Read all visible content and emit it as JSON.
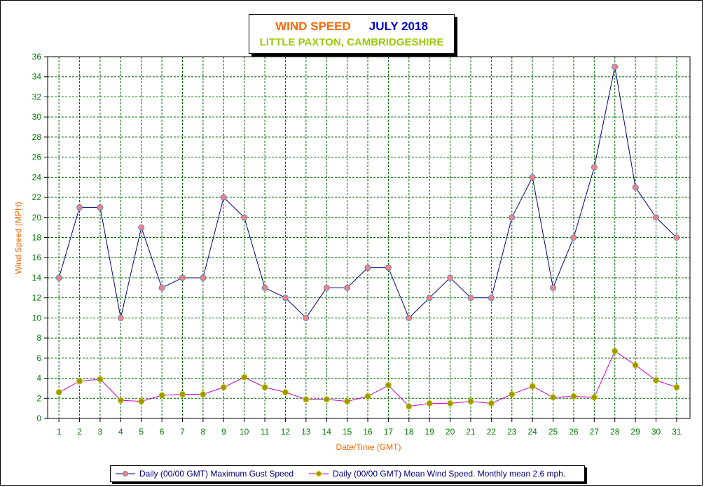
{
  "title": {
    "main": "WIND SPEED",
    "date": "JULY 2018",
    "location": "LITTLE PAXTON, CAMBRIDGESHIRE"
  },
  "colors": {
    "title_main": "#ff6600",
    "title_date": "#0000cc",
    "location": "#99cc00",
    "axis_label": "#ff6600",
    "tick_label": "#008000",
    "gust_line": "#000080",
    "gust_marker": "#ff8080",
    "mean_line": "#cc00cc",
    "mean_marker": "#999900",
    "grid": "#006600"
  },
  "chart_data": {
    "type": "line",
    "xlabel": "Date/Time (GMT)",
    "ylabel": "Wind Speed (MPH)",
    "ylim": [
      0,
      36
    ],
    "y_ticks": [
      0,
      2,
      4,
      6,
      8,
      10,
      12,
      14,
      16,
      18,
      20,
      22,
      24,
      26,
      28,
      30,
      32,
      34,
      36
    ],
    "grid": true,
    "legend_position": "bottom",
    "x": [
      1,
      2,
      3,
      4,
      5,
      6,
      7,
      8,
      9,
      10,
      11,
      12,
      13,
      14,
      15,
      16,
      17,
      18,
      19,
      20,
      21,
      22,
      23,
      24,
      25,
      26,
      27,
      28,
      29,
      30,
      31
    ],
    "series": [
      {
        "name": "Daily (00/00 GMT) Maximum Gust Speed",
        "values": [
          14,
          21,
          21,
          10,
          19,
          13,
          14,
          14,
          22,
          20,
          13,
          12,
          10,
          13,
          13,
          15,
          15,
          10,
          12,
          14,
          12,
          12,
          20,
          24,
          13,
          18,
          25,
          35,
          23,
          20,
          18
        ]
      },
      {
        "name": "Daily (00/00 GMT) Mean Wind Speed. Monthly mean 2.6 mph.",
        "values": [
          2.6,
          3.7,
          3.9,
          1.8,
          1.7,
          2.3,
          2.4,
          2.4,
          3.1,
          4.1,
          3.1,
          2.6,
          1.9,
          1.9,
          1.7,
          2.2,
          3.3,
          1.2,
          1.5,
          1.5,
          1.7,
          1.5,
          2.4,
          3.2,
          2.1,
          2.2,
          2.1,
          6.7,
          5.3,
          3.8,
          3.1
        ]
      }
    ]
  }
}
